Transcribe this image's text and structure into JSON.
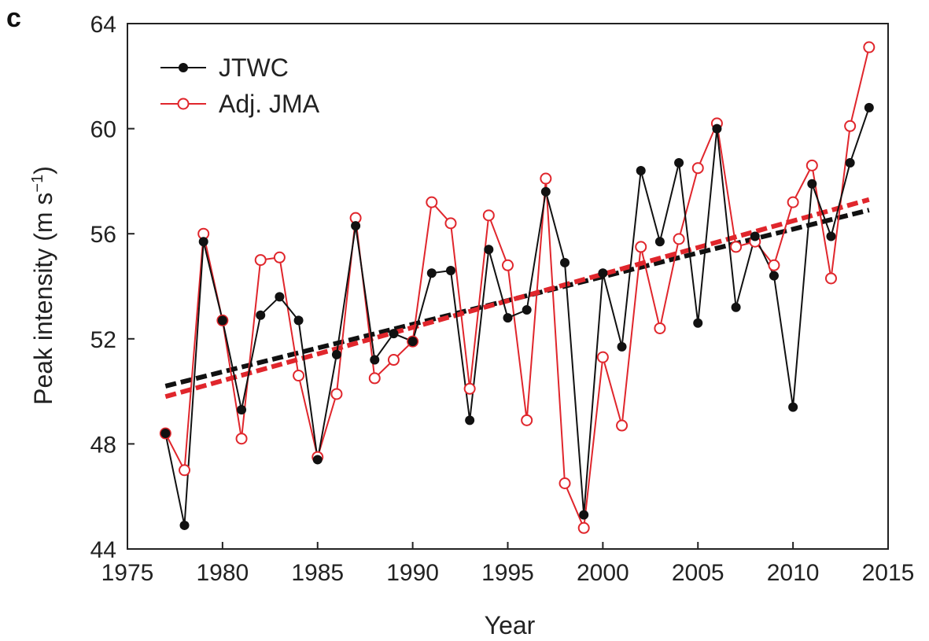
{
  "panel_label": "c",
  "chart_data": {
    "type": "line",
    "title": "",
    "xlabel": "Year",
    "ylabel": "Peak intensity (m s",
    "ylabel_sup": "−1",
    "ylabel_close": ")",
    "xlim": [
      1975,
      2015
    ],
    "ylim": [
      44,
      64
    ],
    "xticks": [
      1975,
      1980,
      1985,
      1990,
      1995,
      2000,
      2005,
      2010,
      2015
    ],
    "yticks": [
      44,
      48,
      52,
      56,
      60,
      64
    ],
    "grid": false,
    "legend_position": "top-left",
    "series": [
      {
        "name": "JTWC",
        "color": "#111111",
        "marker": "filled-circle",
        "x": [
          1977,
          1978,
          1979,
          1980,
          1981,
          1982,
          1983,
          1984,
          1985,
          1986,
          1987,
          1988,
          1989,
          1990,
          1991,
          1992,
          1993,
          1994,
          1995,
          1996,
          1997,
          1998,
          1999,
          2000,
          2001,
          2002,
          2003,
          2004,
          2005,
          2006,
          2007,
          2008,
          2009,
          2010,
          2011,
          2012,
          2013,
          2014
        ],
        "values": [
          48.4,
          44.9,
          55.7,
          52.7,
          49.3,
          52.9,
          53.6,
          52.7,
          47.4,
          51.4,
          56.3,
          51.2,
          52.2,
          51.9,
          54.5,
          54.6,
          48.9,
          55.4,
          52.8,
          53.1,
          57.6,
          54.9,
          45.3,
          54.5,
          51.7,
          58.4,
          55.7,
          58.7,
          52.6,
          60.0,
          53.2,
          55.9,
          54.4,
          49.4,
          57.9,
          55.9,
          58.7,
          60.8
        ],
        "trend": {
          "start": [
            1977,
            50.2
          ],
          "end": [
            2014,
            56.9
          ]
        }
      },
      {
        "name": "Adj. JMA",
        "color": "#e0262c",
        "marker": "open-circle",
        "x": [
          1977,
          1978,
          1979,
          1980,
          1981,
          1982,
          1983,
          1984,
          1985,
          1986,
          1987,
          1988,
          1989,
          1990,
          1991,
          1992,
          1993,
          1994,
          1995,
          1996,
          1997,
          1998,
          1999,
          2000,
          2001,
          2002,
          2003,
          2004,
          2005,
          2006,
          2007,
          2008,
          2009,
          2010,
          2011,
          2012,
          2013,
          2014
        ],
        "values": [
          48.4,
          47.0,
          56.0,
          52.7,
          48.2,
          55.0,
          55.1,
          50.6,
          47.5,
          49.9,
          56.6,
          50.5,
          51.2,
          51.9,
          57.2,
          56.4,
          50.1,
          56.7,
          54.8,
          48.9,
          58.1,
          46.5,
          44.8,
          51.3,
          48.7,
          55.5,
          52.4,
          55.8,
          58.5,
          60.2,
          55.5,
          55.7,
          54.8,
          57.2,
          58.6,
          54.3,
          60.1,
          63.1
        ],
        "trend": {
          "start": [
            1977,
            49.8
          ],
          "end": [
            2014,
            57.3
          ]
        }
      }
    ]
  }
}
